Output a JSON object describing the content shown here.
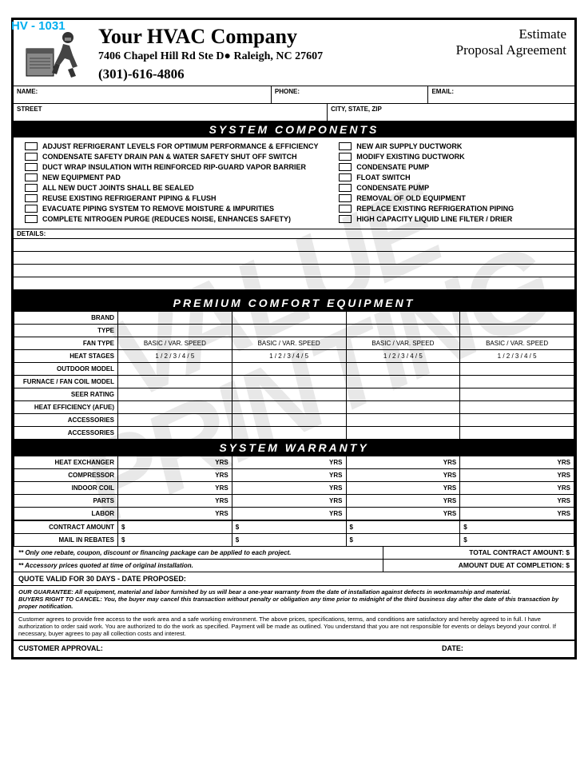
{
  "form_number": "HV - 1031",
  "header": {
    "company_name": "Your HVAC Company",
    "address": "7406 Chapel Hill Rd Ste D● Raleigh, NC 27607",
    "phone": "(301)-616-4806",
    "title_line1": "Estimate",
    "title_line2": "Proposal Agreement"
  },
  "contact_labels": {
    "name": "NAME:",
    "phone": "PHONE:",
    "email": "EMAIL:",
    "street": "STREET",
    "city": "CITY, STATE, ZIP"
  },
  "sections": {
    "components": "SYSTEM COMPONENTS",
    "equipment": "PREMIUM COMFORT EQUIPMENT",
    "warranty": "SYSTEM WARRANTY"
  },
  "components_left": [
    "ADJUST REFRIGERANT LEVELS FOR OPTIMUM PERFORMANCE & EFFICIENCY",
    "CONDENSATE SAFETY DRAIN PAN & WATER SAFETY SHUT OFF SWITCH",
    "DUCT WRAP INSULATION WITH REINFORCED RIP-GUARD VAPOR BARRIER",
    "NEW EQUIPMENT PAD",
    "ALL NEW DUCT JOINTS SHALL BE SEALED",
    "REUSE EXISTING REFRIGERANT PIPING & FLUSH",
    "EVACUATE PIPING SYSTEM TO REMOVE MOISTURE & IMPURITIES",
    "COMPLETE NITROGEN PURGE (REDUCES NOISE, ENHANCES SAFETY)"
  ],
  "components_right": [
    "NEW AIR SUPPLY DUCTWORK",
    "MODIFY EXISTING DUCTWORK",
    "CONDENSATE PUMP",
    "FLOAT SWITCH",
    "CONDENSATE PUMP",
    "REMOVAL OF OLD EQUIPMENT",
    "REPLACE EXISTING REFRIGERATION PIPING",
    "HIGH CAPACITY LIQUID LINE FILTER / DRIER"
  ],
  "details_label": "DETAILS:",
  "equipment_rows": [
    "BRAND",
    "TYPE",
    "FAN TYPE",
    "HEAT STAGES",
    "OUTDOOR MODEL",
    "FURNACE / FAN COIL MODEL",
    "SEER RATING",
    "HEAT EFFICIENCY (AFUE)",
    "ACCESSORIES",
    "ACCESSORIES"
  ],
  "fan_type_value": "BASIC  /  VAR. SPEED",
  "heat_stages_value": "1 / 2 / 3 / 4 / 5",
  "warranty_rows": [
    "HEAT EXCHANGER",
    "COMPRESSOR",
    "INDOOR COIL",
    "PARTS",
    "LABOR"
  ],
  "warranty_suffix": "YRS",
  "money_rows": [
    "CONTRACT AMOUNT",
    "MAIL IN REBATES"
  ],
  "note1": "** Only one rebate, coupon, discount or financing package can be applied to each project.",
  "note2": "** Accessory prices quoted at time of original installation.",
  "total_contract_label": "TOTAL CONTRACT AMOUNT: $",
  "amount_due_label": "AMOUNT DUE AT COMPLETION: $",
  "quote_valid": "QUOTE VALID FOR 30 DAYS  -  DATE PROPOSED:",
  "guarantee": "OUR GUARANTEE:  All equipment, material and labor furnished by us will bear a one-year warranty from the date of installation against defects in workmanship and material.",
  "buyers_right": "BUYERS RIGHT TO CANCEL:  You, the buyer may cancel this transaction without penalty or obligation any time prior to midnight of the third business day after the date of this transaction by proper notification.",
  "terms": "Customer agrees to provide free access to the work area and a safe working environment.  The above prices, specifications, terms, and conditions are satisfactory and hereby agreed to in full.  I have authorization to order said work.  You are authorized to do the work as specified.  Payment will be made as outlined.  You understand that you are not responsible for events or delays beyond your control.  If necessary, buyer agrees to pay all collection costs and interest.",
  "customer_approval": "CUSTOMER APPROVAL:",
  "date_label": "DATE:",
  "watermark": "VALUE\nPRINTING",
  "colors": {
    "form_number": "#00afef",
    "watermark": "#e8e8e8",
    "border": "#000000",
    "bg": "#ffffff"
  }
}
